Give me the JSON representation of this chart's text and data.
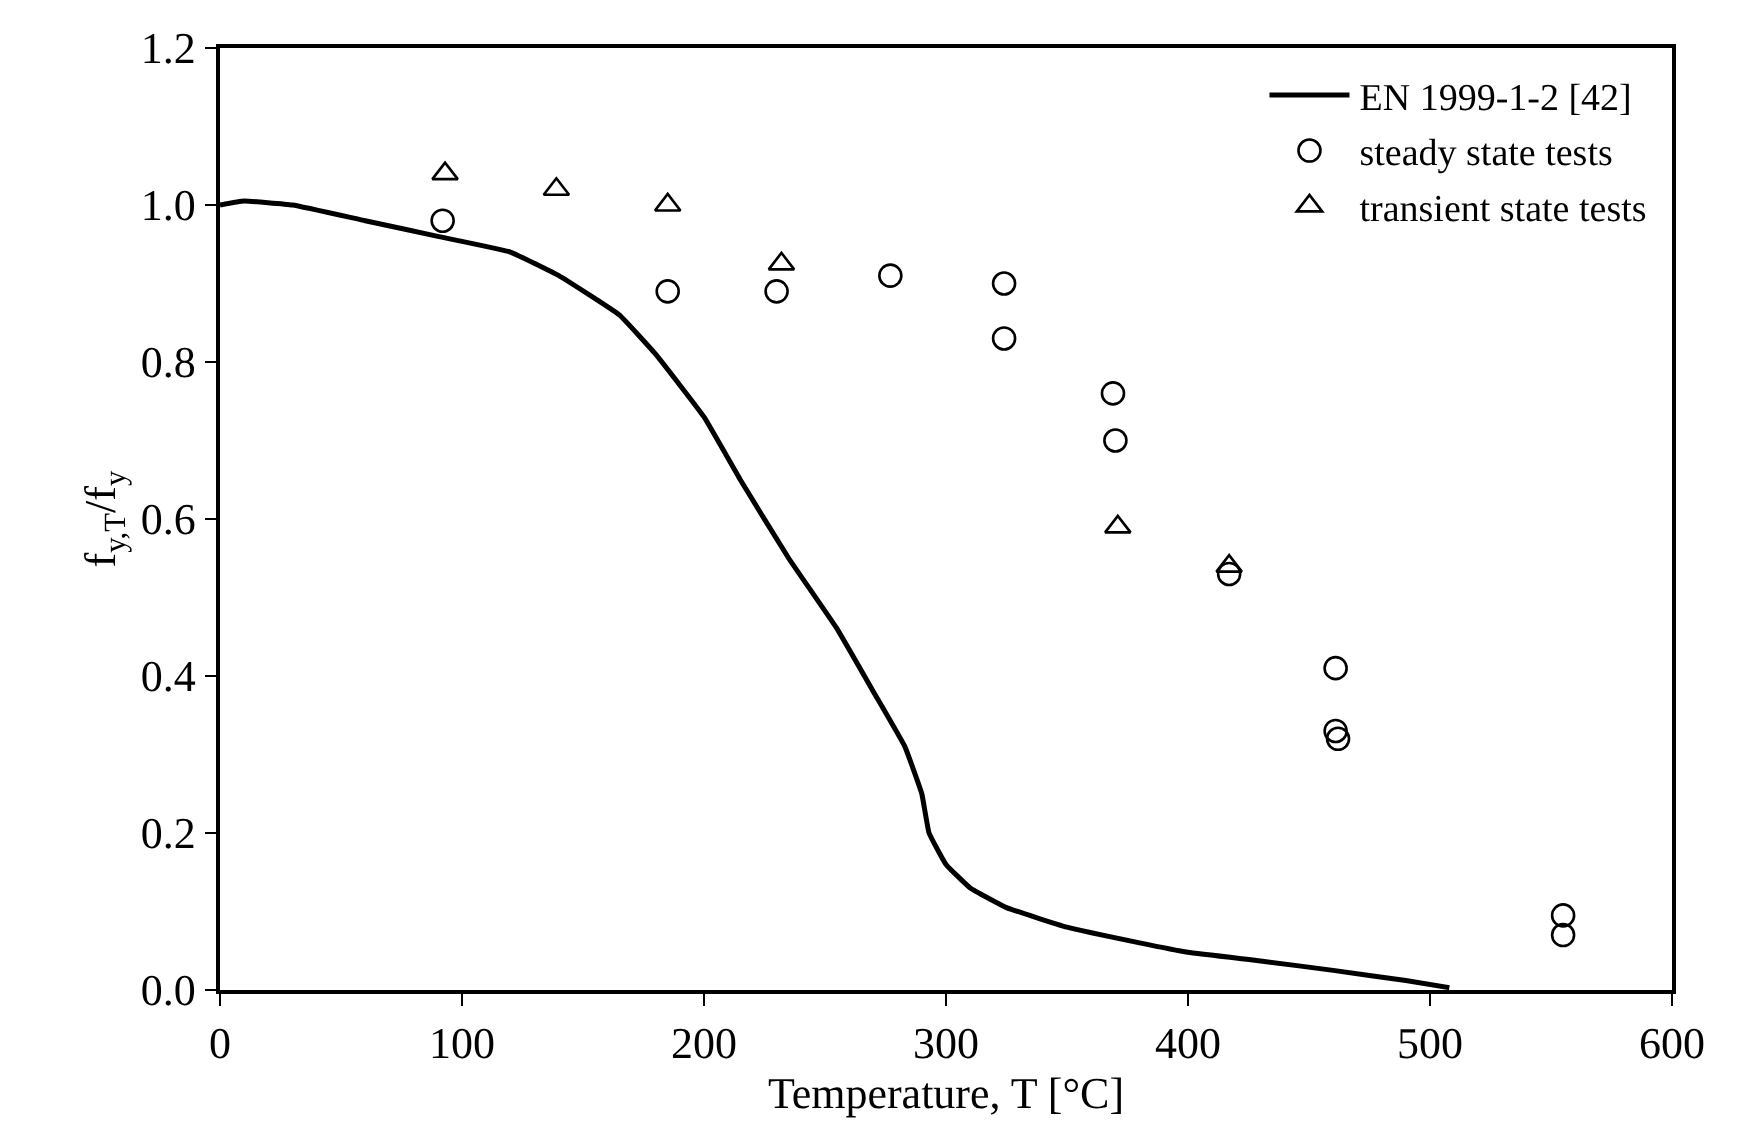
{
  "chart_data": {
    "type": "scatter",
    "xlabel": "Temperature, T [°C]",
    "ylabel": "f$_{y,T}$/f$_{y}$",
    "xlim": [
      0,
      600
    ],
    "xticks": [
      0,
      100,
      200,
      300,
      400,
      500,
      600
    ],
    "ylim": [
      0,
      1.2
    ],
    "yticks": [
      {
        "value": 0,
        "label": "0.0"
      },
      {
        "value": 0.2,
        "label": "0.2"
      },
      {
        "value": 0.4,
        "label": "0.4"
      },
      {
        "value": 0.6,
        "label": "0.6"
      },
      {
        "value": 0.8,
        "label": "0.8"
      },
      {
        "value": 1.0,
        "label": "1.0"
      },
      {
        "value": 1.2,
        "label": "1.2"
      }
    ],
    "grid": false,
    "legend": "top right",
    "series": [
      {
        "name": "EN 1999-1-2 [42]",
        "type": "line",
        "color": "#000000",
        "marker": "none",
        "line_style": "solid",
        "x": [
          0,
          10,
          30,
          60,
          90,
          120,
          140,
          165,
          180,
          200,
          215,
          235,
          255,
          270,
          283,
          290,
          293,
          300,
          310,
          325,
          350,
          380,
          400,
          430,
          460,
          490,
          508
        ],
        "values": [
          1.0,
          1.005,
          1.0,
          0.98,
          0.96,
          0.94,
          0.91,
          0.86,
          0.81,
          0.73,
          0.65,
          0.55,
          0.46,
          0.38,
          0.31,
          0.25,
          0.2,
          0.16,
          0.13,
          0.105,
          0.08,
          0.06,
          0.048,
          0.037,
          0.025,
          0.012,
          0.003
        ]
      },
      {
        "name": "steady state tests",
        "color": "#000000",
        "marker": "circle",
        "x": [
          92,
          185,
          230,
          277,
          324,
          324,
          369,
          370,
          417,
          461,
          461,
          462,
          555,
          555
        ],
        "values": [
          0.98,
          0.89,
          0.89,
          0.91,
          0.9,
          0.83,
          0.76,
          0.7,
          0.53,
          0.41,
          0.33,
          0.32,
          0.095,
          0.07
        ]
      },
      {
        "name": "transient state tests",
        "color": "#000000",
        "marker": "triangle",
        "x": [
          93,
          139,
          185,
          232,
          371,
          417
        ],
        "values": [
          1.04,
          1.02,
          1.0,
          0.925,
          0.59,
          0.54
        ]
      }
    ]
  }
}
